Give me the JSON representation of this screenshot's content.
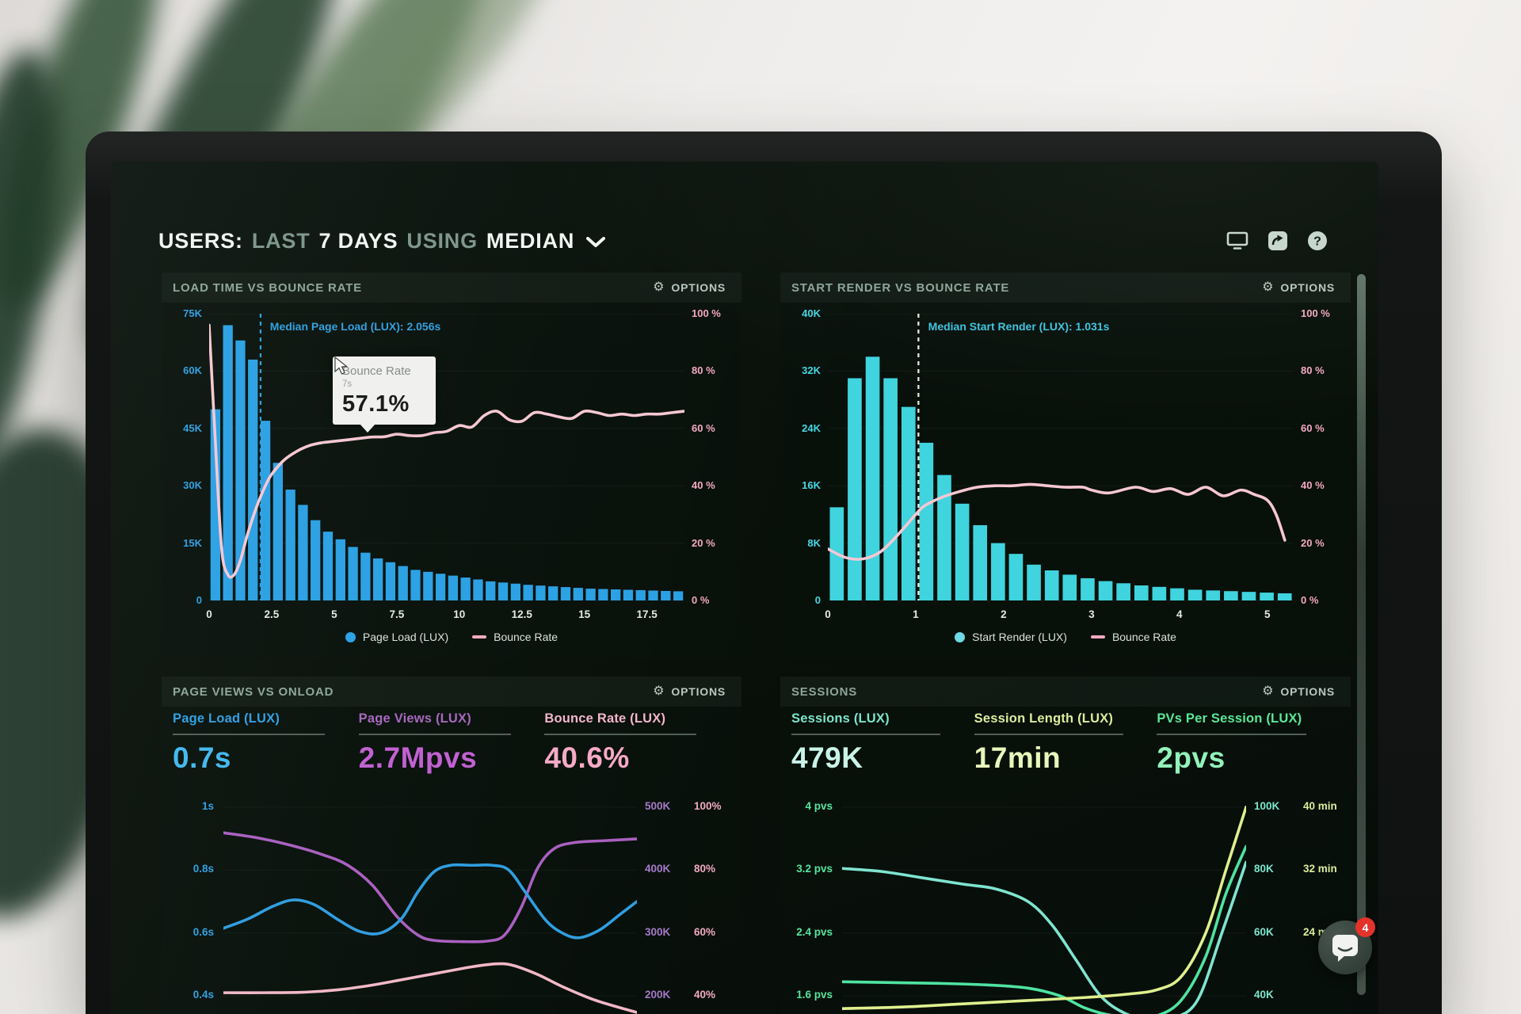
{
  "header": {
    "title_parts": [
      {
        "text": "USERS:",
        "style": "bright"
      },
      {
        "text": "LAST",
        "style": "muted"
      },
      {
        "text": "7 DAYS",
        "style": "bright"
      },
      {
        "text": "USING",
        "style": "muted"
      },
      {
        "text": "MEDIAN",
        "style": "bright"
      }
    ],
    "icons": [
      "monitor-icon",
      "share-icon",
      "help-icon"
    ]
  },
  "chat": {
    "badge": "4"
  },
  "chart_data": [
    {
      "id": "load_time_vs_bounce_rate",
      "type": "bar",
      "title": "LOAD TIME VS BOUNCE RATE",
      "options_label": "OPTIONS",
      "median": {
        "label": "Median Page Load (LUX): 2.056s",
        "x": 2.056,
        "line_color": "#2e9fe0",
        "text_color": "#2e9fe0"
      },
      "tooltip": {
        "title": "Bounce Rate",
        "subtitle": "7s",
        "value": "57.1%"
      },
      "x": {
        "min": 0,
        "max": 19,
        "tick_values": [
          0,
          2.5,
          5,
          7.5,
          10,
          12.5,
          15,
          17.5
        ],
        "tick_labels": [
          "0",
          "2.5",
          "5",
          "7.5",
          "10",
          "12.5",
          "15",
          "17.5"
        ]
      },
      "y_left": {
        "labels": [
          "75K",
          "60K",
          "45K",
          "30K",
          "15K",
          "0"
        ],
        "min": 0,
        "max": 75,
        "color": "#2d9fe2"
      },
      "y_right": {
        "labels": [
          "100 %",
          "80 %",
          "60 %",
          "40 %",
          "20 %",
          "0 %"
        ],
        "min": 0,
        "max": 100,
        "color": "#f2a9c2"
      },
      "bars": {
        "name": "Page Load (LUX)",
        "color": "#2aa0e4",
        "bin_width": 0.5,
        "values_k": [
          50,
          72,
          68,
          63,
          47,
          36,
          29,
          25,
          21,
          18,
          16,
          14,
          12.5,
          11,
          10,
          9,
          8,
          7.5,
          7,
          6.5,
          6,
          5.5,
          5,
          4.7,
          4.4,
          4.1,
          3.9,
          3.7,
          3.5,
          3.3,
          3.1,
          3,
          2.9,
          2.8,
          2.7,
          2.6,
          2.5,
          2.4
        ]
      },
      "line": {
        "name": "Bounce Rate",
        "color": "#f7c7d3",
        "points": [
          [
            0,
            96
          ],
          [
            0.25,
            55
          ],
          [
            0.5,
            18
          ],
          [
            0.75,
            9
          ],
          [
            1,
            9
          ],
          [
            1.25,
            14
          ],
          [
            1.5,
            22
          ],
          [
            1.75,
            29
          ],
          [
            2,
            35
          ],
          [
            2.25,
            40
          ],
          [
            2.5,
            44
          ],
          [
            3,
            49
          ],
          [
            3.5,
            52
          ],
          [
            4,
            54
          ],
          [
            4.5,
            55
          ],
          [
            5,
            55.5
          ],
          [
            5.5,
            56
          ],
          [
            6,
            56.5
          ],
          [
            6.5,
            57
          ],
          [
            7,
            57.1
          ],
          [
            7.5,
            58
          ],
          [
            8,
            57.5
          ],
          [
            8.5,
            57.5
          ],
          [
            9,
            58.5
          ],
          [
            9.5,
            59
          ],
          [
            10,
            61
          ],
          [
            10.5,
            60.5
          ],
          [
            11,
            64.5
          ],
          [
            11.5,
            66
          ],
          [
            12,
            63
          ],
          [
            12.5,
            62.5
          ],
          [
            13,
            65.5
          ],
          [
            13.5,
            65
          ],
          [
            14,
            64
          ],
          [
            14.5,
            63.5
          ],
          [
            15,
            66
          ],
          [
            15.5,
            65.5
          ],
          [
            16,
            64.5
          ],
          [
            16.5,
            65
          ],
          [
            17,
            64.5
          ],
          [
            17.5,
            65
          ],
          [
            18,
            65
          ],
          [
            18.5,
            65.5
          ],
          [
            19,
            66
          ]
        ]
      },
      "legend": [
        {
          "swatch": "dot",
          "color": "#2aa0e4",
          "label": "Page Load (LUX)"
        },
        {
          "swatch": "line",
          "color": "#f2a9c2",
          "label": "Bounce Rate"
        }
      ]
    },
    {
      "id": "start_render_vs_bounce_rate",
      "type": "bar",
      "title": "START RENDER VS BOUNCE RATE",
      "options_label": "OPTIONS",
      "median": {
        "label": "Median Start Render (LUX): 1.031s",
        "x": 1.031,
        "line_color": "#e9f1ec",
        "text_color": "#3cc3de"
      },
      "x": {
        "min": 0,
        "max": 5.3,
        "tick_values": [
          0,
          1,
          2,
          3,
          4,
          5
        ],
        "tick_labels": [
          "0",
          "1",
          "2",
          "3",
          "4",
          "5"
        ]
      },
      "y_left": {
        "labels": [
          "40K",
          "32K",
          "24K",
          "16K",
          "8K",
          "0"
        ],
        "min": 0,
        "max": 40,
        "color": "#45d8e4"
      },
      "y_right": {
        "labels": [
          "100 %",
          "80 %",
          "60 %",
          "40 %",
          "20 %",
          "0 %"
        ],
        "min": 0,
        "max": 100,
        "color": "#f2a9c2"
      },
      "bars": {
        "name": "Start Render (LUX)",
        "color": "#3fd4de",
        "bin_width": 0.2,
        "values_k": [
          13,
          31,
          34,
          31,
          27,
          22,
          17.5,
          13.5,
          10.5,
          8,
          6.5,
          5,
          4.2,
          3.6,
          3.1,
          2.7,
          2.4,
          2.1,
          1.9,
          1.7,
          1.5,
          1.4,
          1.3,
          1.2,
          1.1,
          1
        ]
      },
      "line": {
        "name": "Bounce Rate",
        "color": "#f7c7d3",
        "points": [
          [
            0,
            18
          ],
          [
            0.2,
            15
          ],
          [
            0.4,
            14.5
          ],
          [
            0.6,
            17
          ],
          [
            0.8,
            23
          ],
          [
            1,
            30
          ],
          [
            1.1,
            33
          ],
          [
            1.3,
            36
          ],
          [
            1.5,
            38
          ],
          [
            1.7,
            39.5
          ],
          [
            1.9,
            40
          ],
          [
            2.1,
            40
          ],
          [
            2.3,
            40.5
          ],
          [
            2.5,
            40
          ],
          [
            2.7,
            39.5
          ],
          [
            2.9,
            39.5
          ],
          [
            3,
            38.5
          ],
          [
            3.2,
            37.5
          ],
          [
            3.5,
            39.5
          ],
          [
            3.7,
            38
          ],
          [
            3.9,
            39
          ],
          [
            4.1,
            37
          ],
          [
            4.3,
            39.5
          ],
          [
            4.5,
            36.5
          ],
          [
            4.7,
            38.5
          ],
          [
            4.85,
            37
          ],
          [
            5,
            35
          ],
          [
            5.1,
            30
          ],
          [
            5.2,
            21
          ]
        ]
      },
      "legend": [
        {
          "swatch": "dot",
          "color": "#6fd9e6",
          "label": "Start Render (LUX)"
        },
        {
          "swatch": "line",
          "color": "#f2a9c2",
          "label": "Bounce Rate"
        }
      ]
    },
    {
      "id": "page_views_vs_onload",
      "type": "line",
      "title": "PAGE VIEWS VS ONLOAD",
      "options_label": "OPTIONS",
      "metrics": [
        {
          "label": "Page Load (LUX)",
          "value": "0.7s",
          "label_color": "#2d9fe2",
          "value_color": "#41b7f0"
        },
        {
          "label": "Page Views (LUX)",
          "value": "2.7Mpvs",
          "label_color": "#a766bd",
          "value_color": "#c25fd2"
        },
        {
          "label": "Bounce Rate (LUX)",
          "value": "40.6%",
          "label_color": "#f4b6cc",
          "value_color": "#f6a9c6"
        }
      ],
      "rows_left": {
        "labels": [
          "1s",
          "0.8s",
          "0.6s",
          "0.4s"
        ],
        "color": "#2d9fe2"
      },
      "rows_right": {
        "pairs": [
          [
            "500K",
            "100%"
          ],
          [
            "400K",
            "80%"
          ],
          [
            "300K",
            "60%"
          ],
          [
            "200K",
            "40%"
          ]
        ],
        "color_a": "#a779c9",
        "color_b": "#f2a9c2"
      },
      "series": [
        {
          "name": "Page Views (LUX)",
          "color": "#a95fc0",
          "axis": {
            "min": 170,
            "max": 540
          },
          "points": [
            [
              0,
              468
            ],
            [
              8,
              460
            ],
            [
              16,
              448
            ],
            [
              24,
              432
            ],
            [
              30,
              415
            ],
            [
              36,
              382
            ],
            [
              42,
              330
            ],
            [
              47,
              300
            ],
            [
              51,
              291
            ],
            [
              58,
              289
            ],
            [
              64,
              290
            ],
            [
              68,
              300
            ],
            [
              72,
              345
            ],
            [
              76,
              410
            ],
            [
              80,
              442
            ],
            [
              85,
              452
            ],
            [
              92,
              455
            ],
            [
              100,
              458
            ]
          ]
        },
        {
          "name": "Page Load (LUX)",
          "color": "#2f9de0",
          "axis": {
            "min": 0.343,
            "max": 1.057
          },
          "points": [
            [
              0,
              0.615
            ],
            [
              6,
              0.645
            ],
            [
              12,
              0.685
            ],
            [
              17,
              0.705
            ],
            [
              22,
              0.69
            ],
            [
              28,
              0.64
            ],
            [
              33,
              0.605
            ],
            [
              38,
              0.6
            ],
            [
              43,
              0.645
            ],
            [
              47,
              0.73
            ],
            [
              51,
              0.795
            ],
            [
              55,
              0.815
            ],
            [
              60,
              0.815
            ],
            [
              65,
              0.815
            ],
            [
              69,
              0.8
            ],
            [
              73,
              0.73
            ],
            [
              78,
              0.64
            ],
            [
              82,
              0.6
            ],
            [
              86,
              0.585
            ],
            [
              91,
              0.61
            ],
            [
              96,
              0.66
            ],
            [
              100,
              0.7
            ]
          ]
        },
        {
          "name": "Bounce Rate (LUX)",
          "color": "#f3b8c8",
          "axis": {
            "min": 34,
            "max": 108
          },
          "points": [
            [
              0,
              41
            ],
            [
              10,
              41
            ],
            [
              20,
              41.2
            ],
            [
              28,
              42
            ],
            [
              36,
              43.5
            ],
            [
              44,
              45.5
            ],
            [
              52,
              47.5
            ],
            [
              60,
              49.5
            ],
            [
              66,
              50.5
            ],
            [
              70,
              50
            ],
            [
              76,
              47
            ],
            [
              82,
              43
            ],
            [
              90,
              38.5
            ],
            [
              100,
              34.5
            ]
          ]
        }
      ]
    },
    {
      "id": "sessions",
      "type": "line",
      "title": "SESSIONS",
      "options_label": "OPTIONS",
      "metrics": [
        {
          "label": "Sessions (LUX)",
          "value": "479K",
          "label_color": "#7ce5cb",
          "value_color": "#c9f3e7"
        },
        {
          "label": "Session Length (LUX)",
          "value": "17min",
          "label_color": "#d9ee9b",
          "value_color": "#e9f7bb"
        },
        {
          "label": "PVs Per Session (LUX)",
          "value": "2pvs",
          "label_color": "#58e896",
          "value_color": "#92f2b9"
        }
      ],
      "rows_left": {
        "labels": [
          "4 pvs",
          "3.2 pvs",
          "2.4 pvs",
          "1.6 pvs"
        ],
        "color": "#56e69c"
      },
      "rows_right": {
        "pairs": [
          [
            "100K",
            "40 min"
          ],
          [
            "80K",
            "32 min"
          ],
          [
            "60K",
            "24 min"
          ],
          [
            "40K",
            ""
          ]
        ],
        "color_a": "#7ce5cb",
        "color_b": "#d9ee9b"
      },
      "series": [
        {
          "name": "Sessions (LUX)",
          "color": "#7fe4cf",
          "axis": {
            "min": 1.371,
            "max": 4.229
          },
          "points": [
            [
              0,
              3.22
            ],
            [
              10,
              3.18
            ],
            [
              20,
              3.1
            ],
            [
              30,
              3.02
            ],
            [
              38,
              2.96
            ],
            [
              46,
              2.8
            ],
            [
              52,
              2.5
            ],
            [
              58,
              2.05
            ],
            [
              64,
              1.6
            ],
            [
              70,
              1.38
            ],
            [
              76,
              1.3
            ],
            [
              82,
              1.32
            ],
            [
              88,
              1.55
            ],
            [
              94,
              2.4
            ],
            [
              100,
              3.3
            ]
          ]
        },
        {
          "name": "Session Length (LUX)",
          "color": "#4fe3a1",
          "axis": {
            "min": 1.371,
            "max": 4.229
          },
          "points": [
            [
              0,
              1.78
            ],
            [
              12,
              1.77
            ],
            [
              24,
              1.76
            ],
            [
              36,
              1.74
            ],
            [
              46,
              1.7
            ],
            [
              54,
              1.6
            ],
            [
              60,
              1.45
            ],
            [
              66,
              1.36
            ],
            [
              72,
              1.33
            ],
            [
              78,
              1.35
            ],
            [
              84,
              1.55
            ],
            [
              90,
              2.1
            ],
            [
              95,
              2.9
            ],
            [
              100,
              3.5
            ]
          ]
        },
        {
          "name": "PVs Per Session (LUX)",
          "color": "#dff08e",
          "axis": {
            "min": 1.371,
            "max": 4.229
          },
          "points": [
            [
              0,
              1.44
            ],
            [
              15,
              1.46
            ],
            [
              30,
              1.5
            ],
            [
              45,
              1.54
            ],
            [
              60,
              1.58
            ],
            [
              70,
              1.62
            ],
            [
              78,
              1.68
            ],
            [
              84,
              1.85
            ],
            [
              90,
              2.4
            ],
            [
              95,
              3.2
            ],
            [
              100,
              4
            ]
          ]
        }
      ]
    }
  ]
}
